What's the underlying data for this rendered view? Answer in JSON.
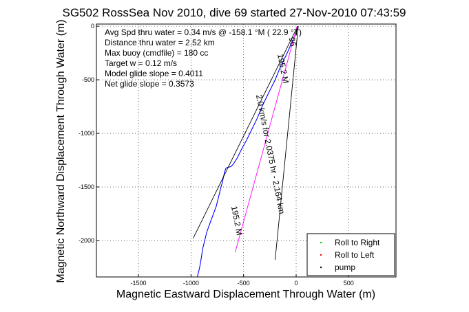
{
  "chart_data": {
    "type": "line",
    "title": "SG502 RossSea Nov 2010, dive 69 started 27-Nov-2010 07:43:59",
    "xlabel": "Magnetic Eastward Displacement Through Water (m)",
    "ylabel": "Magnetic Northward Displacement Through Water (m)",
    "xlim": [
      -1900,
      950
    ],
    "ylim": [
      -2340,
      20
    ],
    "xticks": [
      -1500,
      -1000,
      -500,
      0,
      500
    ],
    "yticks": [
      0,
      -500,
      -1000,
      -1500,
      -2000
    ],
    "grid": true,
    "legend_position": "bottom-right",
    "annotations": [
      "Avg Spd thru water =  0.34 m/s @ -158.1    °M ( 22.9 °T)",
      "Distance thru water =  2.52 km",
      "Max buoy (cmdfile) = 180 cc",
      "Target w = 0.12 m/s",
      "Model glide slope = 0.4011",
      "Net glide slope = 0.3573"
    ],
    "line_labels": [
      {
        "text": "195.2 M",
        "x": -150,
        "y": -400,
        "angle": 79
      },
      {
        "text": "2.0 km/s for 2.0375 hr - 2.164 km",
        "x": -270,
        "y": -1200,
        "angle": 79
      },
      {
        "text": "195.2 M",
        "x": -590,
        "y": -1820,
        "angle": 79
      },
      {
        "text": "96",
        "x": -60,
        "y": -150,
        "angle": 79
      }
    ],
    "series": [
      {
        "name": "track",
        "color": "#0000ff",
        "x": [
          20,
          0,
          -40,
          -90,
          -150,
          -200,
          -260,
          -320,
          -370,
          -420,
          -470,
          -520,
          -560,
          -600,
          -620,
          -640,
          -660,
          -670,
          -680,
          -690,
          -700,
          -720,
          -740,
          -760,
          -790,
          -820,
          -850,
          -870,
          -890,
          -900,
          -910,
          -920,
          -930,
          -940
        ],
        "y": [
          0,
          -60,
          -150,
          -260,
          -380,
          -500,
          -620,
          -740,
          -860,
          -960,
          -1060,
          -1150,
          -1230,
          -1290,
          -1310,
          -1315,
          -1320,
          -1330,
          -1360,
          -1400,
          -1450,
          -1520,
          -1600,
          -1680,
          -1760,
          -1840,
          -1920,
          -2000,
          -2080,
          -2150,
          -2210,
          -2260,
          -2300,
          -2340
        ]
      },
      {
        "name": "heading-line",
        "color": "#000000",
        "x": [
          15,
          -980
        ],
        "y": [
          0,
          -1980
        ]
      },
      {
        "name": "target-line",
        "color": "#000000",
        "x": [
          20,
          -200
        ],
        "y": [
          0,
          -2180
        ]
      },
      {
        "name": "displacement-line",
        "color": "#ff00ff",
        "x": [
          10,
          -580
        ],
        "y": [
          0,
          -2110
        ]
      }
    ],
    "legend": [
      {
        "label": "Roll to Right",
        "color": "#00cc00"
      },
      {
        "label": "Roll to Left",
        "color": "#ff0000"
      },
      {
        "label": "pump",
        "color": "#000000"
      }
    ]
  }
}
